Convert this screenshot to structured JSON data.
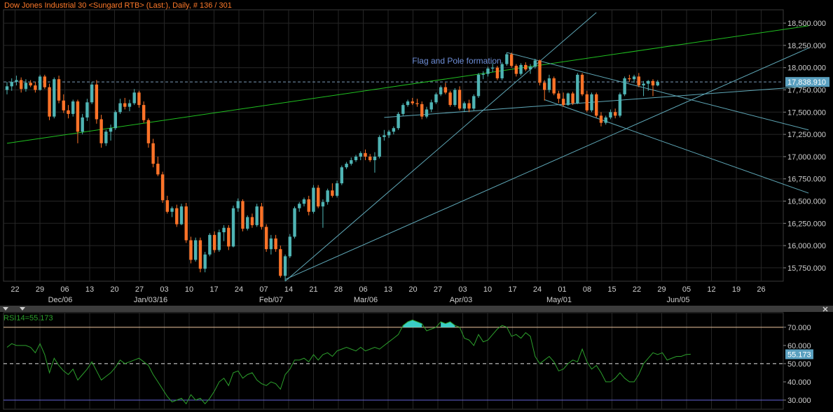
{
  "chart_data": [
    {
      "type": "candlestick",
      "title": "Dow Jones Industrial 30 <Sungard RTB> (Last:), Daily, # 136 / 301",
      "annotation": "Flag and Pole formation",
      "last_value": "17,838.910",
      "ylim": [
        15600,
        18650
      ],
      "y_ticks": [
        "15,750.000",
        "16,000.000",
        "16,250.000",
        "16,500.000",
        "16,750.000",
        "17,000.000",
        "17,250.000",
        "17,500.000",
        "17,750.000",
        "18,000.000",
        "18,250.000",
        "18,500.000"
      ],
      "x_ticks": [
        "22",
        "29",
        "06",
        "13",
        "20",
        "27",
        "03",
        "10",
        "17",
        "24",
        "07",
        "14",
        "21",
        "28",
        "06",
        "13",
        "20",
        "27",
        "03",
        "10",
        "17",
        "24",
        "01",
        "08",
        "15",
        "22",
        "29",
        "05",
        "12",
        "19",
        "26"
      ],
      "month_labels": [
        "Dec/06",
        "Jan/03/16",
        "Feb/07",
        "Mar/06",
        "Apr/03",
        "May/01",
        "Jun/05"
      ],
      "candles": [
        {
          "o": 17750,
          "h": 17840,
          "l": 17700,
          "c": 17790
        },
        {
          "o": 17790,
          "h": 17880,
          "l": 17740,
          "c": 17840
        },
        {
          "o": 17840,
          "h": 17910,
          "l": 17800,
          "c": 17860
        },
        {
          "o": 17860,
          "h": 17890,
          "l": 17720,
          "c": 17760
        },
        {
          "o": 17760,
          "h": 17870,
          "l": 17730,
          "c": 17830
        },
        {
          "o": 17830,
          "h": 17860,
          "l": 17780,
          "c": 17800
        },
        {
          "o": 17800,
          "h": 17840,
          "l": 17720,
          "c": 17750
        },
        {
          "o": 17750,
          "h": 17920,
          "l": 17740,
          "c": 17900
        },
        {
          "o": 17900,
          "h": 17920,
          "l": 17760,
          "c": 17780
        },
        {
          "o": 17780,
          "h": 17820,
          "l": 17410,
          "c": 17450
        },
        {
          "o": 17450,
          "h": 17890,
          "l": 17430,
          "c": 17870
        },
        {
          "o": 17870,
          "h": 17910,
          "l": 17600,
          "c": 17630
        },
        {
          "o": 17630,
          "h": 17700,
          "l": 17490,
          "c": 17520
        },
        {
          "o": 17520,
          "h": 17580,
          "l": 17430,
          "c": 17480
        },
        {
          "o": 17480,
          "h": 17640,
          "l": 17450,
          "c": 17620
        },
        {
          "o": 17620,
          "h": 17640,
          "l": 17150,
          "c": 17280
        },
        {
          "o": 17280,
          "h": 17480,
          "l": 17250,
          "c": 17440
        },
        {
          "o": 17440,
          "h": 17650,
          "l": 17400,
          "c": 17610
        },
        {
          "o": 17610,
          "h": 17840,
          "l": 17590,
          "c": 17810
        },
        {
          "o": 17810,
          "h": 17860,
          "l": 17370,
          "c": 17420
        },
        {
          "o": 17420,
          "h": 17470,
          "l": 17100,
          "c": 17150
        },
        {
          "o": 17150,
          "h": 17300,
          "l": 17120,
          "c": 17280
        },
        {
          "o": 17280,
          "h": 17360,
          "l": 17180,
          "c": 17320
        },
        {
          "o": 17320,
          "h": 17520,
          "l": 17300,
          "c": 17500
        },
        {
          "o": 17500,
          "h": 17650,
          "l": 17480,
          "c": 17600
        },
        {
          "o": 17600,
          "h": 17660,
          "l": 17530,
          "c": 17560
        },
        {
          "o": 17560,
          "h": 17640,
          "l": 17510,
          "c": 17600
        },
        {
          "o": 17600,
          "h": 17760,
          "l": 17580,
          "c": 17720
        },
        {
          "o": 17720,
          "h": 17740,
          "l": 17550,
          "c": 17580
        },
        {
          "o": 17580,
          "h": 17620,
          "l": 17380,
          "c": 17410
        },
        {
          "o": 17410,
          "h": 17430,
          "l": 17100,
          "c": 17150
        },
        {
          "o": 17150,
          "h": 17200,
          "l": 16880,
          "c": 16920
        },
        {
          "o": 16920,
          "h": 17000,
          "l": 16780,
          "c": 16800
        },
        {
          "o": 16800,
          "h": 16830,
          "l": 16480,
          "c": 16510
        },
        {
          "o": 16510,
          "h": 16560,
          "l": 16360,
          "c": 16380
        },
        {
          "o": 16380,
          "h": 16440,
          "l": 16320,
          "c": 16420
        },
        {
          "o": 16420,
          "h": 16460,
          "l": 16210,
          "c": 16240
        },
        {
          "o": 16240,
          "h": 16470,
          "l": 16230,
          "c": 16440
        },
        {
          "o": 16440,
          "h": 16480,
          "l": 16030,
          "c": 16060
        },
        {
          "o": 16060,
          "h": 16100,
          "l": 15800,
          "c": 15840
        },
        {
          "o": 15840,
          "h": 16090,
          "l": 15820,
          "c": 16060
        },
        {
          "o": 16060,
          "h": 16090,
          "l": 15700,
          "c": 15740
        },
        {
          "o": 15740,
          "h": 15930,
          "l": 15700,
          "c": 15900
        },
        {
          "o": 15900,
          "h": 16140,
          "l": 15880,
          "c": 16120
        },
        {
          "o": 16120,
          "h": 16160,
          "l": 15920,
          "c": 15950
        },
        {
          "o": 15950,
          "h": 16180,
          "l": 15930,
          "c": 16150
        },
        {
          "o": 16150,
          "h": 16230,
          "l": 16050,
          "c": 16200
        },
        {
          "o": 16200,
          "h": 16230,
          "l": 15950,
          "c": 15990
        },
        {
          "o": 15990,
          "h": 16450,
          "l": 15980,
          "c": 16420
        },
        {
          "o": 16420,
          "h": 16530,
          "l": 16380,
          "c": 16500
        },
        {
          "o": 16500,
          "h": 16520,
          "l": 16160,
          "c": 16190
        },
        {
          "o": 16190,
          "h": 16340,
          "l": 16170,
          "c": 16320
        },
        {
          "o": 16320,
          "h": 16360,
          "l": 16200,
          "c": 16230
        },
        {
          "o": 16230,
          "h": 16470,
          "l": 16210,
          "c": 16440
        },
        {
          "o": 16440,
          "h": 16480,
          "l": 16180,
          "c": 16210
        },
        {
          "o": 16210,
          "h": 16240,
          "l": 15930,
          "c": 15960
        },
        {
          "o": 15960,
          "h": 16120,
          "l": 15900,
          "c": 16080
        },
        {
          "o": 16080,
          "h": 16120,
          "l": 15930,
          "c": 15960
        },
        {
          "o": 15960,
          "h": 16000,
          "l": 15640,
          "c": 15660
        },
        {
          "o": 15660,
          "h": 15900,
          "l": 15600,
          "c": 15880
        },
        {
          "o": 15880,
          "h": 16130,
          "l": 15860,
          "c": 16100
        },
        {
          "o": 16100,
          "h": 16440,
          "l": 16080,
          "c": 16420
        },
        {
          "o": 16420,
          "h": 16490,
          "l": 16380,
          "c": 16470
        },
        {
          "o": 16470,
          "h": 16540,
          "l": 16440,
          "c": 16520
        },
        {
          "o": 16520,
          "h": 16560,
          "l": 16340,
          "c": 16380
        },
        {
          "o": 16380,
          "h": 16680,
          "l": 16360,
          "c": 16650
        },
        {
          "o": 16650,
          "h": 16680,
          "l": 16420,
          "c": 16440
        },
        {
          "o": 16440,
          "h": 16520,
          "l": 16200,
          "c": 16490
        },
        {
          "o": 16490,
          "h": 16640,
          "l": 16460,
          "c": 16620
        },
        {
          "o": 16620,
          "h": 16700,
          "l": 16540,
          "c": 16560
        },
        {
          "o": 16560,
          "h": 16730,
          "l": 16540,
          "c": 16700
        },
        {
          "o": 16700,
          "h": 16900,
          "l": 16680,
          "c": 16880
        },
        {
          "o": 16880,
          "h": 16940,
          "l": 16860,
          "c": 16920
        },
        {
          "o": 16920,
          "h": 16990,
          "l": 16900,
          "c": 16960
        },
        {
          "o": 16960,
          "h": 17020,
          "l": 16940,
          "c": 17000
        },
        {
          "o": 17000,
          "h": 17060,
          "l": 16960,
          "c": 17040
        },
        {
          "o": 17040,
          "h": 17080,
          "l": 16960,
          "c": 17000
        },
        {
          "o": 17000,
          "h": 17030,
          "l": 16940,
          "c": 16960
        },
        {
          "o": 16960,
          "h": 17050,
          "l": 16820,
          "c": 17000
        },
        {
          "o": 17000,
          "h": 17240,
          "l": 16980,
          "c": 17220
        },
        {
          "o": 17220,
          "h": 17300,
          "l": 17180,
          "c": 17240
        },
        {
          "o": 17240,
          "h": 17300,
          "l": 17210,
          "c": 17280
        },
        {
          "o": 17280,
          "h": 17340,
          "l": 17250,
          "c": 17320
        },
        {
          "o": 17320,
          "h": 17500,
          "l": 17300,
          "c": 17480
        },
        {
          "o": 17480,
          "h": 17600,
          "l": 17460,
          "c": 17580
        },
        {
          "o": 17580,
          "h": 17640,
          "l": 17560,
          "c": 17620
        },
        {
          "o": 17620,
          "h": 17660,
          "l": 17580,
          "c": 17600
        },
        {
          "o": 17600,
          "h": 17650,
          "l": 17560,
          "c": 17590
        },
        {
          "o": 17590,
          "h": 17620,
          "l": 17420,
          "c": 17450
        },
        {
          "o": 17450,
          "h": 17560,
          "l": 17430,
          "c": 17530
        },
        {
          "o": 17530,
          "h": 17640,
          "l": 17500,
          "c": 17610
        },
        {
          "o": 17610,
          "h": 17720,
          "l": 17590,
          "c": 17700
        },
        {
          "o": 17700,
          "h": 17800,
          "l": 17680,
          "c": 17780
        },
        {
          "o": 17780,
          "h": 17830,
          "l": 17700,
          "c": 17720
        },
        {
          "o": 17720,
          "h": 17740,
          "l": 17560,
          "c": 17580
        },
        {
          "o": 17580,
          "h": 17770,
          "l": 17560,
          "c": 17750
        },
        {
          "o": 17750,
          "h": 17790,
          "l": 17520,
          "c": 17540
        },
        {
          "o": 17540,
          "h": 17620,
          "l": 17500,
          "c": 17600
        },
        {
          "o": 17600,
          "h": 17640,
          "l": 17500,
          "c": 17540
        },
        {
          "o": 17540,
          "h": 17700,
          "l": 17520,
          "c": 17680
        },
        {
          "o": 17680,
          "h": 17940,
          "l": 17660,
          "c": 17920
        },
        {
          "o": 17920,
          "h": 17960,
          "l": 17870,
          "c": 17930
        },
        {
          "o": 17930,
          "h": 18010,
          "l": 17900,
          "c": 17990
        },
        {
          "o": 17990,
          "h": 18050,
          "l": 17950,
          "c": 18000
        },
        {
          "o": 18000,
          "h": 18020,
          "l": 17860,
          "c": 17880
        },
        {
          "o": 17880,
          "h": 18060,
          "l": 17860,
          "c": 18040
        },
        {
          "o": 18040,
          "h": 18170,
          "l": 18020,
          "c": 18150
        },
        {
          "o": 18150,
          "h": 18170,
          "l": 18000,
          "c": 18020
        },
        {
          "o": 18020,
          "h": 18040,
          "l": 17900,
          "c": 17930
        },
        {
          "o": 17930,
          "h": 18050,
          "l": 17910,
          "c": 18030
        },
        {
          "o": 18030,
          "h": 18060,
          "l": 17960,
          "c": 17980
        },
        {
          "o": 17980,
          "h": 18040,
          "l": 17930,
          "c": 18010
        },
        {
          "o": 18010,
          "h": 18100,
          "l": 17990,
          "c": 18080
        },
        {
          "o": 18080,
          "h": 18090,
          "l": 17800,
          "c": 17830
        },
        {
          "o": 17830,
          "h": 17860,
          "l": 17630,
          "c": 17750
        },
        {
          "o": 17750,
          "h": 17920,
          "l": 17720,
          "c": 17880
        },
        {
          "o": 17880,
          "h": 17900,
          "l": 17690,
          "c": 17710
        },
        {
          "o": 17710,
          "h": 17740,
          "l": 17600,
          "c": 17650
        },
        {
          "o": 17650,
          "h": 17720,
          "l": 17560,
          "c": 17580
        },
        {
          "o": 17580,
          "h": 17720,
          "l": 17570,
          "c": 17710
        },
        {
          "o": 17710,
          "h": 17730,
          "l": 17580,
          "c": 17600
        },
        {
          "o": 17600,
          "h": 17940,
          "l": 17590,
          "c": 17920
        },
        {
          "o": 17920,
          "h": 17940,
          "l": 17680,
          "c": 17700
        },
        {
          "o": 17700,
          "h": 17740,
          "l": 17500,
          "c": 17520
        },
        {
          "o": 17520,
          "h": 17720,
          "l": 17500,
          "c": 17700
        },
        {
          "o": 17700,
          "h": 17720,
          "l": 17440,
          "c": 17460
        },
        {
          "o": 17460,
          "h": 17500,
          "l": 17340,
          "c": 17380
        },
        {
          "o": 17380,
          "h": 17460,
          "l": 17360,
          "c": 17440
        },
        {
          "o": 17440,
          "h": 17530,
          "l": 17420,
          "c": 17500
        },
        {
          "o": 17500,
          "h": 17540,
          "l": 17430,
          "c": 17460
        },
        {
          "o": 17460,
          "h": 17720,
          "l": 17440,
          "c": 17700
        },
        {
          "o": 17700,
          "h": 17900,
          "l": 17680,
          "c": 17880
        },
        {
          "o": 17880,
          "h": 17920,
          "l": 17840,
          "c": 17870
        },
        {
          "o": 17870,
          "h": 17920,
          "l": 17830,
          "c": 17900
        },
        {
          "o": 17900,
          "h": 17940,
          "l": 17780,
          "c": 17800
        },
        {
          "o": 17800,
          "h": 17850,
          "l": 17680,
          "c": 17820
        },
        {
          "o": 17820,
          "h": 17860,
          "l": 17740,
          "c": 17850
        },
        {
          "o": 17850,
          "h": 17870,
          "l": 17680,
          "c": 17800
        },
        {
          "o": 17800,
          "h": 17860,
          "l": 17790,
          "c": 17838.91
        }
      ],
      "trendlines": [
        {
          "name": "long-uptrend",
          "color": "#20c020",
          "from": [
            0,
            17150
          ],
          "to": [
            170,
            18470
          ]
        },
        {
          "name": "pole-line",
          "color": "#5fa8b8",
          "from": [
            59,
            15600
          ],
          "to": [
            125,
            18620
          ]
        },
        {
          "name": "support-line",
          "color": "#5fa8b8",
          "from": [
            59,
            15620
          ],
          "to": [
            170,
            18220
          ]
        },
        {
          "name": "flag-upper",
          "color": "#5fa8b8",
          "from": [
            106,
            18170
          ],
          "to": [
            170,
            17300
          ]
        },
        {
          "name": "flag-lower",
          "color": "#5fa8b8",
          "from": [
            114,
            17640
          ],
          "to": [
            170,
            16590
          ]
        },
        {
          "name": "flag-mid",
          "color": "#5fa8b8",
          "from": [
            80,
            17440
          ],
          "to": [
            170,
            17790
          ]
        }
      ]
    },
    {
      "type": "line",
      "title": "RSI14=55.173",
      "last_value": "55.173",
      "ylim": [
        25,
        78
      ],
      "y_ticks": [
        "30.000",
        "40.000",
        "50.000",
        "60.000",
        "70.000"
      ],
      "levels": {
        "overbought": 70,
        "mid": 50,
        "oversold": 30
      },
      "values": [
        59,
        61,
        60,
        60,
        60,
        59,
        56,
        61,
        55,
        45,
        53,
        49,
        46,
        44,
        47,
        41,
        44,
        47,
        51,
        46,
        41,
        43,
        45,
        48,
        52,
        50,
        51,
        52,
        53,
        51,
        49,
        44,
        40,
        36,
        32,
        29,
        30,
        31,
        28,
        33,
        30,
        31,
        28,
        31,
        35,
        40,
        42,
        38,
        45,
        46,
        42,
        44,
        45,
        41,
        39,
        38,
        40,
        39,
        36,
        44,
        47,
        52,
        52,
        53,
        51,
        55,
        52,
        55,
        56,
        54,
        57,
        58,
        59,
        58,
        57,
        59,
        57,
        58,
        59,
        58,
        60,
        62,
        64,
        66,
        71,
        73,
        74,
        73,
        72,
        68,
        69,
        70,
        73,
        72,
        73,
        71,
        70,
        64,
        63,
        60,
        66,
        62,
        63,
        66,
        69,
        71,
        70,
        65,
        66,
        64,
        67,
        65,
        54,
        50,
        52,
        54,
        51,
        46,
        47,
        50,
        52,
        51,
        58,
        51,
        47,
        49,
        45,
        40,
        40,
        42,
        45,
        42,
        40,
        40,
        44,
        50,
        53,
        56,
        55,
        56,
        52,
        53,
        54,
        54,
        55,
        55.173
      ]
    }
  ]
}
